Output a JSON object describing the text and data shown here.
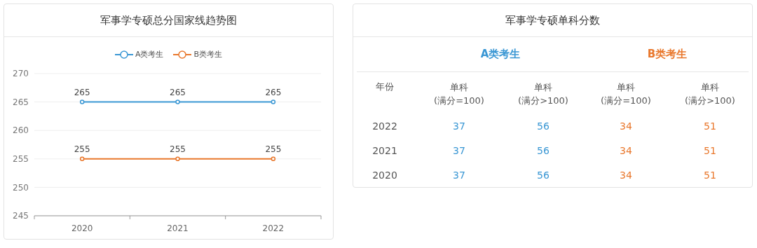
{
  "chart_data": [
    {
      "type": "line",
      "title": "军事学专硕总分国家线趋势图",
      "categories": [
        "2020",
        "2021",
        "2022"
      ],
      "series": [
        {
          "name": "A类考生",
          "color": "#3a97d4",
          "values": [
            265,
            265,
            265
          ]
        },
        {
          "name": "B类考生",
          "color": "#e9782d",
          "values": [
            255,
            255,
            255
          ]
        }
      ],
      "ylim": [
        245,
        270
      ],
      "yticks": [
        245,
        250,
        255,
        260,
        265,
        270
      ],
      "grid": "y",
      "legend": "top",
      "marker": "circle",
      "data_labels": true
    },
    {
      "type": "heatmap",
      "title": "军事学专硕单科分数",
      "ylabel": "年份",
      "categories": [
        "单科\n(满分=100)",
        "单科\n(满分>100)",
        "单科\n(满分=100)",
        "单科\n(满分>100)"
      ],
      "y_categories": [
        "2022",
        "2021",
        "2020"
      ],
      "cells": [
        [
          37,
          56,
          34,
          51
        ],
        [
          37,
          56,
          34,
          51
        ],
        [
          37,
          56,
          34,
          51
        ]
      ],
      "data_labels": true,
      "annotations": [
        "A类考生",
        "B类考生"
      ]
    }
  ]
}
